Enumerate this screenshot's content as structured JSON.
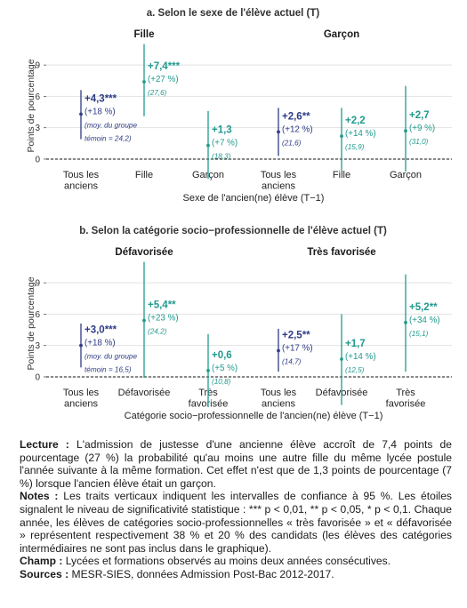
{
  "colors": {
    "dark": "#2e3c86",
    "teal": "#219a8e",
    "grid": "#e2e2e2",
    "axis": "#222222",
    "text": "#333333"
  },
  "chart_data": [
    {
      "type": "scatter",
      "title": "a. Selon le sexe de l'élève actuel (T)",
      "ylabel": "Points de pourcentage",
      "xlabel": "Sexe de l'ancien(ne) élève (T−1)",
      "ylim": [
        -0.6,
        10.8
      ],
      "yticks": [
        0,
        3,
        6,
        9
      ],
      "facets": [
        "Fille",
        "Garçon"
      ],
      "categories": [
        "Tous les anciens",
        "Fille",
        "Garçon"
      ],
      "error_bars": "Intervalles de confiance à 95 %",
      "points": [
        {
          "facet": "Fille",
          "category": "Tous les anciens",
          "value": 4.3,
          "ci": [
            1.9,
            6.6
          ],
          "series": "all",
          "label": "+4,3***",
          "pct": "(+18 %)",
          "note_lines": [
            "(moy. du groupe",
            "témoin = 24,2)"
          ]
        },
        {
          "facet": "Fille",
          "category": "Fille",
          "value": 7.4,
          "ci": [
            4.1,
            11.0
          ],
          "series": "teal",
          "label": "+7,4***",
          "pct": "(+27 %)",
          "note_lines": [
            "(27,6)"
          ]
        },
        {
          "facet": "Fille",
          "category": "Garçon",
          "value": 1.3,
          "ci": [
            -1.9,
            4.6
          ],
          "series": "teal",
          "label": "+1,3",
          "pct": "(+7 %)",
          "note_lines": [
            "(18,3)"
          ]
        },
        {
          "facet": "Garçon",
          "category": "Tous les anciens",
          "value": 2.6,
          "ci": [
            0.3,
            4.9
          ],
          "series": "all",
          "label": "+2,6**",
          "pct": "(+12 %)",
          "note_lines": [
            "(21,6)"
          ]
        },
        {
          "facet": "Garçon",
          "category": "Fille",
          "value": 2.2,
          "ci": [
            -1.1,
            4.9
          ],
          "series": "teal",
          "label": "+2,2",
          "pct": "(+14 %)",
          "note_lines": [
            "(15,9)"
          ]
        },
        {
          "facet": "Garçon",
          "category": "Garçon",
          "value": 2.7,
          "ci": [
            -1.2,
            7.0
          ],
          "series": "teal",
          "label": "+2,7",
          "pct": "(+9 %)",
          "note_lines": [
            "(31,0)"
          ]
        }
      ]
    },
    {
      "type": "scatter",
      "title": "b. Selon la catégorie socio−professionnelle de l'élève actuel (T)",
      "ylabel": "Points de pourcentage",
      "xlabel": "Catégorie socio−professionnelle de l'ancien(ne) élève (T−1)",
      "ylim": [
        -0.6,
        10.8
      ],
      "yticks": [
        0,
        3,
        6,
        9
      ],
      "facets": [
        "Défavorisée",
        "Très favorisée"
      ],
      "categories": [
        "Tous les anciens",
        "Défavorisée",
        "Très favorisée"
      ],
      "error_bars": "Intervalles de confiance à 95 %",
      "points": [
        {
          "facet": "Défavorisée",
          "category": "Tous les anciens",
          "value": 3.0,
          "ci": [
            0.9,
            5.1
          ],
          "series": "all",
          "label": "+3,0***",
          "pct": "(+18 %)",
          "note_lines": [
            "(moy. du groupe",
            "témoin = 16,5)"
          ]
        },
        {
          "facet": "Défavorisée",
          "category": "Défavorisée",
          "value": 5.4,
          "ci": [
            -0.1,
            11.0
          ],
          "series": "teal",
          "label": "+5,4**",
          "pct": "(+23 %)",
          "note_lines": [
            "(24,2)"
          ]
        },
        {
          "facet": "Défavorisée",
          "category": "Très favorisée",
          "value": 0.6,
          "ci": [
            -2.9,
            4.1
          ],
          "series": "teal",
          "label": "+0,6",
          "pct": "(+5 %)",
          "note_lines": [
            "(10,8)"
          ]
        },
        {
          "facet": "Très favorisée",
          "category": "Tous les anciens",
          "value": 2.5,
          "ci": [
            0.5,
            4.6
          ],
          "series": "all",
          "label": "+2,5**",
          "pct": "(+17 %)",
          "note_lines": [
            "(14,7)"
          ]
        },
        {
          "facet": "Très favorisée",
          "category": "Défavorisée",
          "value": 1.7,
          "ci": [
            -2.7,
            6.0
          ],
          "series": "teal",
          "label": "+1,7",
          "pct": "(+14 %)",
          "note_lines": [
            "(12,5)"
          ]
        },
        {
          "facet": "Très favorisée",
          "category": "Très favorisée",
          "value": 5.2,
          "ci": [
            0.5,
            9.8
          ],
          "series": "teal",
          "label": "+5,2**",
          "pct": "(+34 %)",
          "note_lines": [
            "(15,1)"
          ]
        }
      ]
    }
  ],
  "notes": {
    "lecture_label": "Lecture :",
    "lecture_text": "L'admission de justesse d'une ancienne élève accroît de 7,4 points de pourcentage (27 %) la probabilité qu'au moins une autre fille du même lycée postule l'année suivante à la même formation. Cet effet n'est que de 1,3 points de pourcentage (7 %) lorsque l'ancien élève était un garçon.",
    "notes_label": "Notes :",
    "notes_text": "Les traits verticaux indiquent les intervalles de confiance à 95 %. Les étoiles signalent le niveau de significativité statistique : *** p < 0,01, ** p < 0,05, * p < 0,1. Chaque année, les élèves de catégories socio-professionnelles « très favorisée » et « défavorisée » représentent respectivement 38 % et 20 % des candidats (les élèves des catégories intermédiaires ne sont pas inclus dans le graphique).",
    "champ_label": "Champ :",
    "champ_text": "Lycées et formations observés au moins deux années consécutives.",
    "sources_label": "Sources :",
    "sources_text": "MESR-SIES, données Admission Post-Bac 2012-2017."
  }
}
